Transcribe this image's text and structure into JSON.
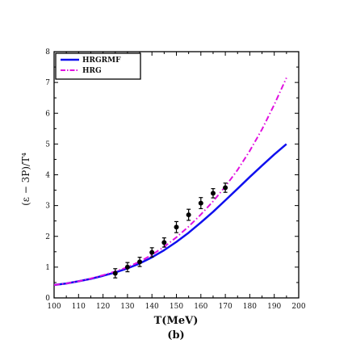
{
  "chart_data": {
    "type": "line",
    "xlabel": "T(MeV)",
    "ylabel": "(ε − 3P)/T⁴",
    "panel_label": "(b)",
    "xlim": [
      100,
      200
    ],
    "ylim": [
      0,
      8
    ],
    "xticks": [
      100,
      110,
      120,
      130,
      140,
      150,
      160,
      170,
      180,
      190,
      200
    ],
    "yticks": [
      0,
      1,
      2,
      3,
      4,
      5,
      6,
      7,
      8
    ],
    "legend_position": "top-left",
    "grid": false,
    "series": [
      {
        "name": "HRGRMF",
        "color": "#1010ee",
        "style": "solid",
        "x": [
          100,
          105,
          110,
          115,
          120,
          125,
          130,
          135,
          140,
          145,
          150,
          155,
          160,
          165,
          170,
          175,
          180,
          185,
          190,
          195
        ],
        "y": [
          0.42,
          0.47,
          0.54,
          0.62,
          0.72,
          0.83,
          0.96,
          1.12,
          1.32,
          1.55,
          1.82,
          2.12,
          2.45,
          2.8,
          3.17,
          3.55,
          3.93,
          4.3,
          4.66,
          5.0
        ]
      },
      {
        "name": "HRG",
        "color": "#e010e0",
        "style": "dashdot",
        "x": [
          100,
          105,
          110,
          115,
          120,
          125,
          130,
          135,
          140,
          145,
          150,
          155,
          160,
          165,
          170,
          175,
          180,
          185,
          190,
          195
        ],
        "y": [
          0.42,
          0.47,
          0.54,
          0.63,
          0.74,
          0.86,
          1.0,
          1.18,
          1.4,
          1.66,
          1.97,
          2.32,
          2.71,
          3.14,
          3.62,
          4.16,
          4.78,
          5.48,
          6.28,
          7.15
        ]
      }
    ],
    "points": {
      "x": [
        125,
        130,
        135,
        140,
        145,
        150,
        155,
        160,
        165,
        170
      ],
      "y": [
        0.8,
        1.0,
        1.17,
        1.48,
        1.8,
        2.3,
        2.7,
        3.08,
        3.4,
        3.58
      ],
      "err": [
        0.15,
        0.15,
        0.15,
        0.15,
        0.15,
        0.18,
        0.18,
        0.18,
        0.15,
        0.15
      ]
    }
  }
}
